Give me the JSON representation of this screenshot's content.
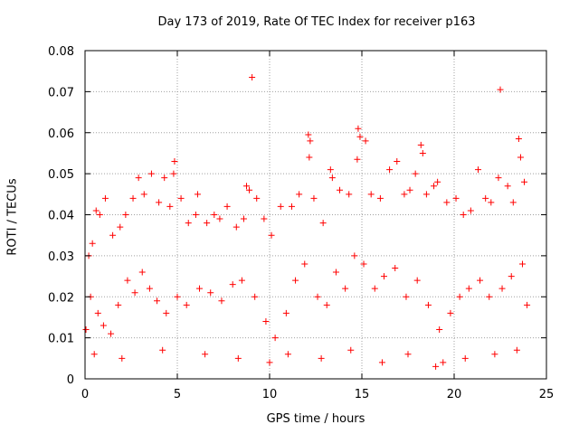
{
  "chart_data": {
    "type": "scatter",
    "title": "Day 173 of 2019, Rate Of TEC Index for receiver p163",
    "xlabel": "GPS time / hours",
    "ylabel": "ROTI / TECUs",
    "xlim": [
      0,
      25
    ],
    "ylim": [
      0,
      0.08
    ],
    "x_ticks": [
      "0",
      "5",
      "10",
      "15",
      "20",
      "25"
    ],
    "y_ticks": [
      "0",
      "0.01",
      "0.02",
      "0.03",
      "0.04",
      "0.05",
      "0.06",
      "0.07",
      "0.08"
    ],
    "grid": true,
    "marker": "+",
    "color": "#ff0000",
    "series": [
      {
        "points": [
          [
            0.2,
            0.03
          ],
          [
            0.4,
            0.033
          ],
          [
            0.6,
            0.041
          ],
          [
            0.8,
            0.04
          ],
          [
            1.1,
            0.044
          ],
          [
            1.5,
            0.035
          ],
          [
            1.9,
            0.037
          ],
          [
            2.2,
            0.04
          ],
          [
            2.6,
            0.044
          ],
          [
            2.9,
            0.049
          ],
          [
            3.2,
            0.045
          ],
          [
            3.6,
            0.05
          ],
          [
            4.0,
            0.043
          ],
          [
            4.3,
            0.049
          ],
          [
            4.6,
            0.042
          ],
          [
            4.8,
            0.05
          ],
          [
            4.85,
            0.053
          ],
          [
            5.2,
            0.044
          ],
          [
            5.6,
            0.038
          ],
          [
            6.0,
            0.04
          ],
          [
            6.1,
            0.045
          ],
          [
            6.6,
            0.038
          ],
          [
            7.0,
            0.04
          ],
          [
            7.3,
            0.039
          ],
          [
            7.7,
            0.042
          ],
          [
            8.2,
            0.037
          ],
          [
            8.6,
            0.039
          ],
          [
            8.75,
            0.047
          ],
          [
            8.9,
            0.046
          ],
          [
            9.05,
            0.0735
          ],
          [
            9.3,
            0.044
          ],
          [
            9.7,
            0.039
          ],
          [
            10.1,
            0.035
          ],
          [
            10.6,
            0.042
          ],
          [
            11.2,
            0.042
          ],
          [
            11.6,
            0.045
          ],
          [
            12.1,
            0.0595
          ],
          [
            12.2,
            0.058
          ],
          [
            12.15,
            0.054
          ],
          [
            12.4,
            0.044
          ],
          [
            12.9,
            0.038
          ],
          [
            13.3,
            0.051
          ],
          [
            13.4,
            0.049
          ],
          [
            13.8,
            0.046
          ],
          [
            14.3,
            0.045
          ],
          [
            14.8,
            0.061
          ],
          [
            14.9,
            0.059
          ],
          [
            14.75,
            0.0535
          ],
          [
            15.2,
            0.058
          ],
          [
            15.5,
            0.045
          ],
          [
            16.0,
            0.044
          ],
          [
            16.5,
            0.051
          ],
          [
            16.9,
            0.053
          ],
          [
            17.3,
            0.045
          ],
          [
            17.6,
            0.046
          ],
          [
            17.9,
            0.05
          ],
          [
            18.2,
            0.057
          ],
          [
            18.3,
            0.055
          ],
          [
            18.5,
            0.045
          ],
          [
            18.9,
            0.047
          ],
          [
            19.1,
            0.048
          ],
          [
            19.6,
            0.043
          ],
          [
            20.1,
            0.044
          ],
          [
            20.5,
            0.04
          ],
          [
            20.9,
            0.041
          ],
          [
            21.3,
            0.051
          ],
          [
            21.7,
            0.044
          ],
          [
            22.0,
            0.043
          ],
          [
            22.4,
            0.049
          ],
          [
            22.5,
            0.0705
          ],
          [
            22.9,
            0.047
          ],
          [
            23.2,
            0.043
          ],
          [
            23.5,
            0.0585
          ],
          [
            23.6,
            0.054
          ],
          [
            23.8,
            0.048
          ],
          [
            0.05,
            0.012
          ],
          [
            0.3,
            0.02
          ],
          [
            0.7,
            0.016
          ],
          [
            1.0,
            0.013
          ],
          [
            1.4,
            0.011
          ],
          [
            1.8,
            0.018
          ],
          [
            2.3,
            0.024
          ],
          [
            2.7,
            0.021
          ],
          [
            3.1,
            0.026
          ],
          [
            3.5,
            0.022
          ],
          [
            3.9,
            0.019
          ],
          [
            4.4,
            0.016
          ],
          [
            5.0,
            0.02
          ],
          [
            5.5,
            0.018
          ],
          [
            6.2,
            0.022
          ],
          [
            6.8,
            0.021
          ],
          [
            7.4,
            0.019
          ],
          [
            8.0,
            0.023
          ],
          [
            8.5,
            0.024
          ],
          [
            9.2,
            0.02
          ],
          [
            9.8,
            0.014
          ],
          [
            10.3,
            0.01
          ],
          [
            10.9,
            0.016
          ],
          [
            11.4,
            0.024
          ],
          [
            11.9,
            0.028
          ],
          [
            12.6,
            0.02
          ],
          [
            13.1,
            0.018
          ],
          [
            13.6,
            0.026
          ],
          [
            14.1,
            0.022
          ],
          [
            14.6,
            0.03
          ],
          [
            15.1,
            0.028
          ],
          [
            15.7,
            0.022
          ],
          [
            16.2,
            0.025
          ],
          [
            16.8,
            0.027
          ],
          [
            17.4,
            0.02
          ],
          [
            18.0,
            0.024
          ],
          [
            18.6,
            0.018
          ],
          [
            19.2,
            0.012
          ],
          [
            19.8,
            0.016
          ],
          [
            20.3,
            0.02
          ],
          [
            20.8,
            0.022
          ],
          [
            21.4,
            0.024
          ],
          [
            21.9,
            0.02
          ],
          [
            22.6,
            0.022
          ],
          [
            23.1,
            0.025
          ],
          [
            23.7,
            0.028
          ],
          [
            23.95,
            0.018
          ],
          [
            0.5,
            0.006
          ],
          [
            2.0,
            0.005
          ],
          [
            4.2,
            0.007
          ],
          [
            6.5,
            0.006
          ],
          [
            8.3,
            0.005
          ],
          [
            10.0,
            0.004
          ],
          [
            11.0,
            0.006
          ],
          [
            12.8,
            0.005
          ],
          [
            14.4,
            0.007
          ],
          [
            16.1,
            0.004
          ],
          [
            17.5,
            0.006
          ],
          [
            19.0,
            0.003
          ],
          [
            19.4,
            0.004
          ],
          [
            20.6,
            0.005
          ],
          [
            22.2,
            0.006
          ],
          [
            23.4,
            0.007
          ]
        ]
      }
    ]
  }
}
